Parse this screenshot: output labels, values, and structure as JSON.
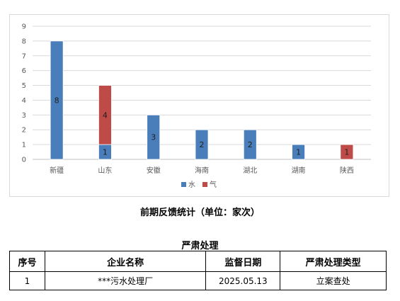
{
  "chart_data": {
    "type": "bar",
    "stacked": true,
    "categories": [
      "新疆",
      "山东",
      "安徽",
      "海南",
      "湖北",
      "湖南",
      "陕西"
    ],
    "series": [
      {
        "name": "水",
        "color": "#4a7ebb",
        "values": [
          8,
          1,
          3,
          2,
          2,
          1,
          0
        ]
      },
      {
        "name": "气",
        "color": "#be4b48",
        "values": [
          0,
          4,
          0,
          0,
          0,
          0,
          1
        ]
      }
    ],
    "ylim": [
      0,
      9
    ],
    "yticks": [
      0,
      1,
      2,
      3,
      4,
      5,
      6,
      7,
      8,
      9
    ],
    "grid": true,
    "legend_position": "bottom"
  },
  "caption": "前期反馈统计（单位：家次）",
  "table": {
    "title": "严肃处理",
    "headers": [
      "序号",
      "企业名称",
      "监督日期",
      "严肃处理类型"
    ],
    "rows": [
      [
        "1",
        "***污水处理厂",
        "2025.05.13",
        "立案查处"
      ]
    ]
  }
}
